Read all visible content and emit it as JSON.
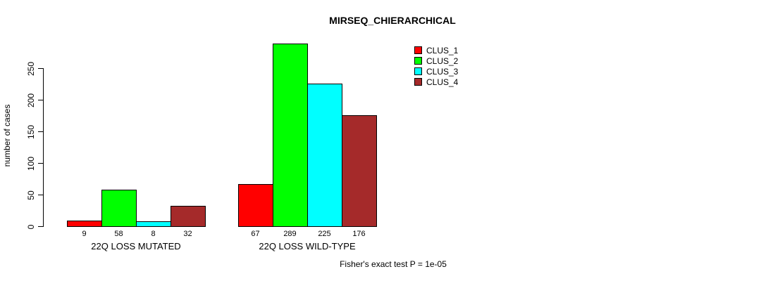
{
  "chart_data": {
    "type": "bar",
    "title": "MIRSEQ_CHIERARCHICAL",
    "ylabel": "number of cases",
    "xlabel": "",
    "categories": [
      "22Q LOSS MUTATED",
      "22Q LOSS WILD-TYPE"
    ],
    "series": [
      {
        "name": "CLUS_1",
        "color": "#FF0000",
        "values": [
          9,
          67
        ]
      },
      {
        "name": "CLUS_2",
        "color": "#00FF00",
        "values": [
          58,
          289
        ]
      },
      {
        "name": "CLUS_3",
        "color": "#00FFFF",
        "values": [
          8,
          225
        ]
      },
      {
        "name": "CLUS_4",
        "color": "#A52A2A",
        "values": [
          32,
          176
        ]
      }
    ],
    "yticks": [
      0,
      50,
      100,
      150,
      200,
      250
    ],
    "ylim": [
      0,
      290
    ],
    "grid": false,
    "legend_position": "top-right",
    "bar_value_labels": true,
    "annotation": "Fisher's exact test P = 1e-05"
  }
}
